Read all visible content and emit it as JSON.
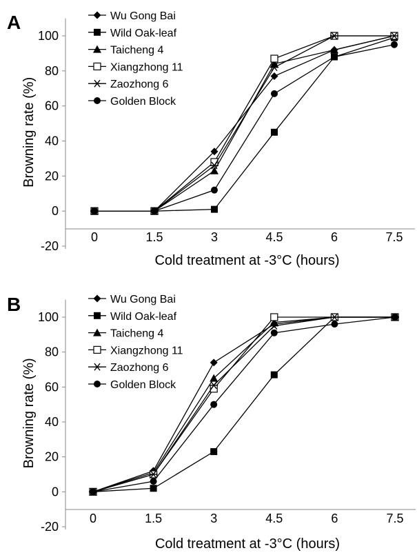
{
  "chart_data": [
    {
      "panel": "A",
      "type": "line",
      "x": [
        0,
        1.5,
        3,
        4.5,
        6,
        7.5
      ],
      "x_tick_labels": [
        "0",
        "1.5",
        "3",
        "4.5",
        "6",
        "7.5"
      ],
      "xlabel": "Cold treatment at -3°C (hours)",
      "ylabel": "Browning rate (%)",
      "ylim": [
        -20,
        110
      ],
      "y_ticks": [
        -20,
        0,
        20,
        40,
        60,
        80,
        100
      ],
      "grid": false,
      "legend_position": "top-left",
      "series": [
        {
          "name": "Wu Gong Bai",
          "marker": "diamond",
          "values": [
            0,
            0,
            34,
            77,
            92,
            100
          ]
        },
        {
          "name": "Wild Oak-leaf",
          "marker": "square",
          "values": [
            0,
            0,
            1,
            45,
            88,
            99
          ]
        },
        {
          "name": "Taicheng 4",
          "marker": "triangle",
          "values": [
            0,
            0,
            23,
            84,
            92,
            100
          ]
        },
        {
          "name": "Xiangzhong 11",
          "marker": "open-square",
          "values": [
            0,
            0,
            28,
            87,
            100,
            100
          ]
        },
        {
          "name": "Zaozhong 6",
          "marker": "asterisk",
          "values": [
            0,
            0,
            26,
            82,
            100,
            100
          ]
        },
        {
          "name": "Golden Block",
          "marker": "circle",
          "values": [
            0,
            0,
            12,
            67,
            88,
            95
          ]
        }
      ]
    },
    {
      "panel": "B",
      "type": "line",
      "x": [
        0,
        1.5,
        3,
        4.5,
        6,
        7.5
      ],
      "x_tick_labels": [
        "0",
        "1.5",
        "3",
        "4.5",
        "6",
        "7.5"
      ],
      "xlabel": "Cold treatment at -3°C (hours)",
      "ylabel": "Browning rate (%)",
      "ylim": [
        -20,
        110
      ],
      "y_ticks": [
        -20,
        0,
        20,
        40,
        60,
        80,
        100
      ],
      "grid": false,
      "legend_position": "top-left",
      "series": [
        {
          "name": "Wu Gong Bai",
          "marker": "diamond",
          "values": [
            0,
            12,
            74,
            96,
            100,
            100
          ]
        },
        {
          "name": "Wild Oak-leaf",
          "marker": "square",
          "values": [
            0,
            2,
            23,
            67,
            100,
            100
          ]
        },
        {
          "name": "Taicheng 4",
          "marker": "triangle",
          "values": [
            0,
            11,
            65,
            97,
            100,
            100
          ]
        },
        {
          "name": "Xiangzhong 11",
          "marker": "open-square",
          "values": [
            0,
            10,
            59,
            100,
            100,
            100
          ]
        },
        {
          "name": "Zaozhong 6",
          "marker": "asterisk",
          "values": [
            0,
            10,
            61,
            95,
            100,
            100
          ]
        },
        {
          "name": "Golden Block",
          "marker": "circle",
          "values": [
            0,
            6,
            50,
            91,
            96,
            100
          ]
        }
      ]
    }
  ]
}
